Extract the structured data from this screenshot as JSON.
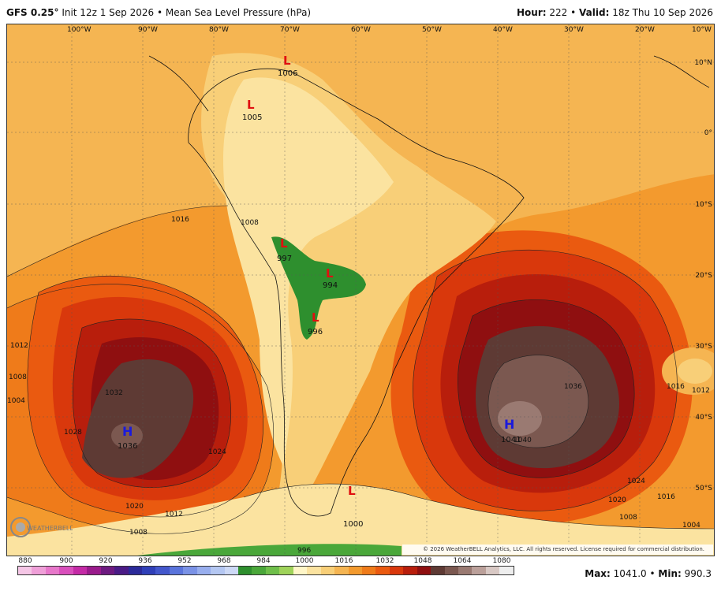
{
  "header": {
    "model": "GFS 0.25°",
    "init": "Init 12z 1 Sep 2026",
    "field": "Mean Sea Level Pressure (hPa)",
    "hour_label": "Hour:",
    "hour": "222",
    "valid_label": "Valid:",
    "valid": "18z Thu 10 Sep 2026"
  },
  "map": {
    "lon_labels": [
      "100°W",
      "90°W",
      "80°W",
      "70°W",
      "60°W",
      "50°W",
      "40°W",
      "30°W",
      "20°W",
      "10°W"
    ],
    "lat_labels": [
      "10°N",
      "0°",
      "10°S",
      "20°S",
      "30°S",
      "40°S",
      "50°S"
    ],
    "centers": [
      {
        "type": "H",
        "value": "1036",
        "color": "#1a1adc"
      },
      {
        "type": "H",
        "value": "1041",
        "color": "#1a1adc"
      },
      {
        "type": "L",
        "value": "1006",
        "color": "#e01010"
      },
      {
        "type": "L",
        "value": "1005",
        "color": "#e01010"
      },
      {
        "type": "L",
        "value": "997",
        "color": "#e01010"
      },
      {
        "type": "L",
        "value": "994",
        "color": "#e01010"
      },
      {
        "type": "L",
        "value": "996",
        "color": "#e01010"
      },
      {
        "type": "L",
        "value": "1000",
        "color": "#e01010"
      }
    ],
    "isobar_labels": [
      "1016",
      "1012",
      "1008",
      "1004",
      "1032",
      "1028",
      "1024",
      "1020",
      "1036",
      "1040",
      "1016",
      "1012",
      "1008",
      "1004",
      "1024",
      "1020",
      "1016",
      "1012",
      "1008",
      "996",
      "1008"
    ],
    "copyright": "© 2026 WeatherBELL Analytics, LLC. All rights reserved. License required for commercial distribution.",
    "logo_text": "WEATHERBELL"
  },
  "colorbar": {
    "ticks": [
      "880",
      "900",
      "920",
      "936",
      "952",
      "968",
      "984",
      "1000",
      "1016",
      "1032",
      "1048",
      "1064",
      "1080"
    ],
    "colors": [
      "#f5c6e6",
      "#ef9fd8",
      "#e777ca",
      "#d94fbc",
      "#c42aa6",
      "#9a1b8c",
      "#6d1a80",
      "#4a1b86",
      "#2b2a9a",
      "#2f3fb8",
      "#4357cc",
      "#5a74dc",
      "#7a92e6",
      "#98aeee",
      "#b4c7f2",
      "#cdd9f6",
      "#2e8f2e",
      "#4aa73a",
      "#6fbf4a",
      "#9fd35a",
      "#fff6c8",
      "#fbe3a0",
      "#f8cf78",
      "#f5b552",
      "#f39a2e",
      "#ef7b1a",
      "#ea5a10",
      "#d9380c",
      "#b81e0c",
      "#8f0f10",
      "#5e3a34",
      "#7b5850",
      "#9a7a72",
      "#bba09a",
      "#d8c8c4",
      "#eeeeee"
    ]
  },
  "stats": {
    "max_label": "Max:",
    "max": "1041.0",
    "min_label": "Min:",
    "min": "990.3"
  }
}
